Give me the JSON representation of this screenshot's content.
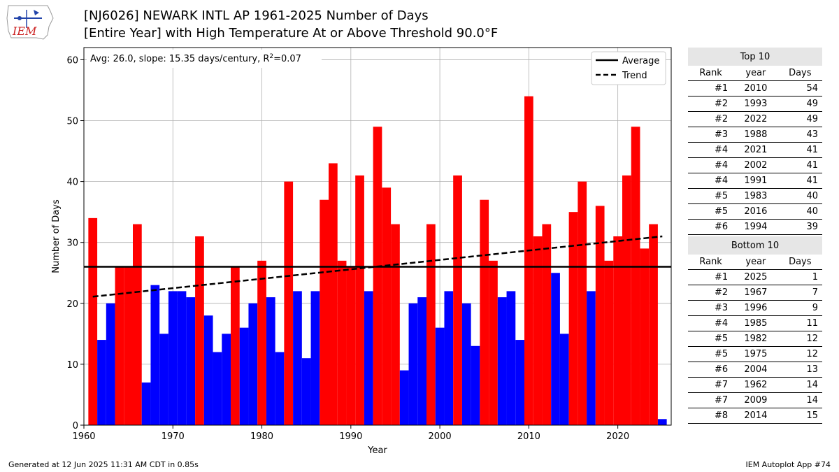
{
  "logo_text": "IEM",
  "title_line1": "[NJ6026] NEWARK INTL AP 1961-2025 Number of Days",
  "title_line2": "[Entire Year] with High Temperature At or Above Threshold 90.0°F",
  "footer_left": "Generated at 12 Jun 2025 11:31 AM CDT in 0.85s",
  "footer_right": "IEM Autoplot App #74",
  "colors": {
    "above": "#ff0000",
    "below": "#0000ff",
    "line": "#000000",
    "grid": "#b0b0b0",
    "table_header_bg": "#e6e6e6"
  },
  "chart_data": {
    "type": "bar",
    "xlabel": "Year",
    "ylabel": "Number of Days",
    "xlim": [
      1960,
      2026
    ],
    "ylim": [
      0,
      62
    ],
    "xticks": [
      1960,
      1970,
      1980,
      1990,
      2000,
      2010,
      2020
    ],
    "yticks": [
      0,
      10,
      20,
      30,
      40,
      50,
      60
    ],
    "grid": true,
    "annotation_prefix": "Avg: 26.0, slope: 15.35 days/century, R",
    "annotation_sup": "2",
    "annotation_suffix": "=0.07",
    "average": 26.0,
    "trend": {
      "x_start": 1961,
      "y_start": 21.1,
      "x_end": 2025,
      "y_end": 31.0
    },
    "legend": {
      "position": "top-right",
      "entries": [
        "Average",
        "Trend"
      ]
    },
    "years": [
      1961,
      1962,
      1963,
      1964,
      1965,
      1966,
      1967,
      1968,
      1969,
      1970,
      1971,
      1972,
      1973,
      1974,
      1975,
      1976,
      1977,
      1978,
      1979,
      1980,
      1981,
      1982,
      1983,
      1984,
      1985,
      1986,
      1987,
      1988,
      1989,
      1990,
      1991,
      1992,
      1993,
      1994,
      1995,
      1996,
      1997,
      1998,
      1999,
      2000,
      2001,
      2002,
      2003,
      2004,
      2005,
      2006,
      2007,
      2008,
      2009,
      2010,
      2011,
      2012,
      2013,
      2014,
      2015,
      2016,
      2017,
      2018,
      2019,
      2020,
      2021,
      2022,
      2023,
      2024,
      2025
    ],
    "values": [
      34,
      14,
      20,
      26,
      26,
      33,
      7,
      23,
      15,
      22,
      22,
      21,
      31,
      18,
      12,
      15,
      26,
      16,
      20,
      27,
      21,
      12,
      40,
      22,
      11,
      22,
      37,
      43,
      27,
      26,
      41,
      22,
      49,
      39,
      33,
      9,
      20,
      21,
      33,
      16,
      22,
      41,
      20,
      13,
      37,
      27,
      21,
      22,
      14,
      54,
      31,
      33,
      25,
      15,
      35,
      40,
      22,
      36,
      27,
      31,
      41,
      49,
      29,
      33,
      1
    ]
  },
  "top10": {
    "title": "Top 10",
    "headers": [
      "Rank",
      "year",
      "Days"
    ],
    "rows": [
      [
        "#1",
        "2010",
        "54"
      ],
      [
        "#2",
        "1993",
        "49"
      ],
      [
        "#2",
        "2022",
        "49"
      ],
      [
        "#3",
        "1988",
        "43"
      ],
      [
        "#4",
        "2021",
        "41"
      ],
      [
        "#4",
        "2002",
        "41"
      ],
      [
        "#4",
        "1991",
        "41"
      ],
      [
        "#5",
        "1983",
        "40"
      ],
      [
        "#5",
        "2016",
        "40"
      ],
      [
        "#6",
        "1994",
        "39"
      ]
    ]
  },
  "bottom10": {
    "title": "Bottom 10",
    "headers": [
      "Rank",
      "year",
      "Days"
    ],
    "rows": [
      [
        "#1",
        "2025",
        "1"
      ],
      [
        "#2",
        "1967",
        "7"
      ],
      [
        "#3",
        "1996",
        "9"
      ],
      [
        "#4",
        "1985",
        "11"
      ],
      [
        "#5",
        "1982",
        "12"
      ],
      [
        "#5",
        "1975",
        "12"
      ],
      [
        "#6",
        "2004",
        "13"
      ],
      [
        "#7",
        "1962",
        "14"
      ],
      [
        "#7",
        "2009",
        "14"
      ],
      [
        "#8",
        "2014",
        "15"
      ]
    ]
  }
}
